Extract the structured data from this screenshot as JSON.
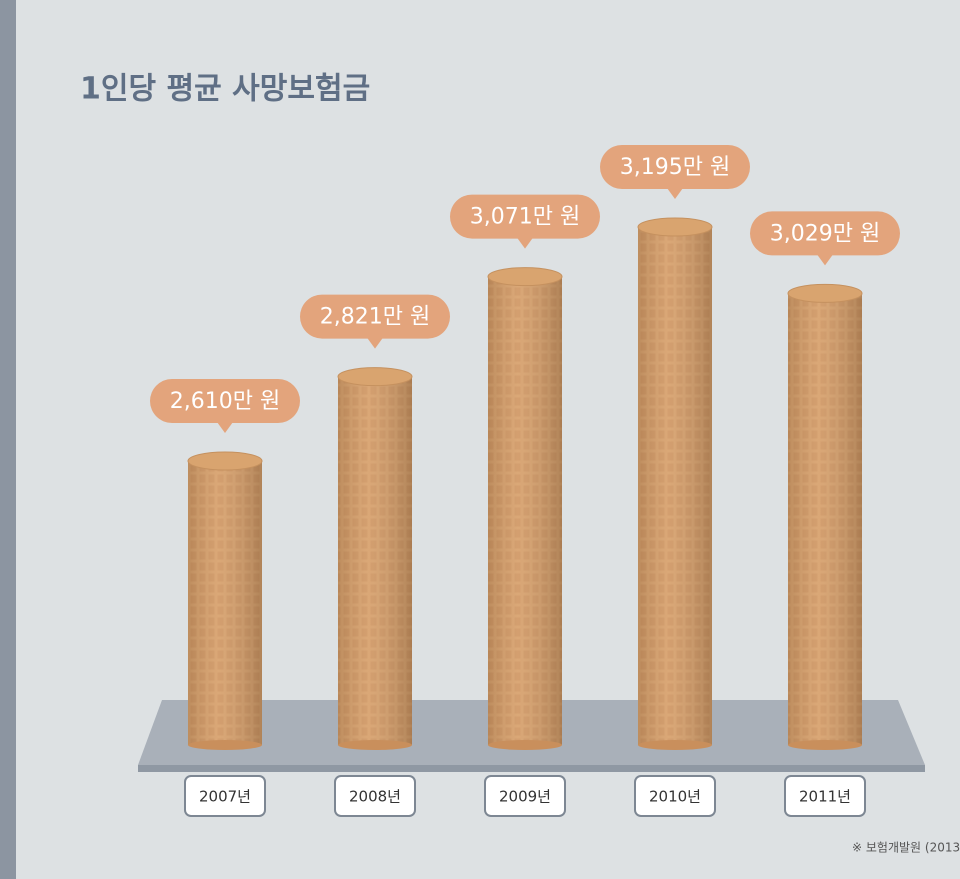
{
  "chart_data": {
    "type": "cylinder-bar",
    "title": "1인당 평균 사망보험금",
    "categories": [
      "2007년",
      "2008년",
      "2009년",
      "2010년",
      "2011년"
    ],
    "values": [
      2610,
      2821,
      3071,
      3195,
      3029
    ],
    "value_labels": [
      "2,610만 원",
      "2,821만 원",
      "3,071만 원",
      "3,195만 원",
      "3,029만 원"
    ],
    "color": "#d9a46f",
    "label_color": "#e3a47c",
    "ylim": [
      1900,
      3300
    ],
    "source": "※ 보험개발원 (2013"
  }
}
